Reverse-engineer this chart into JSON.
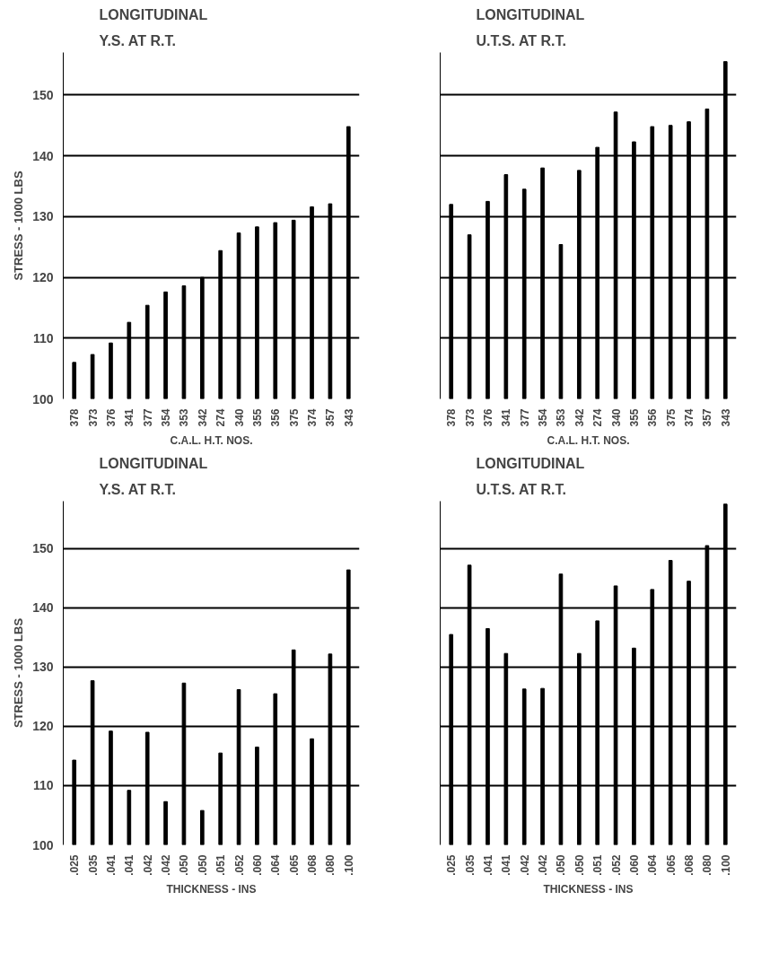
{
  "chart_data": [
    {
      "type": "bar",
      "title": "LONGITUDINAL",
      "subtitle": "Y.S. AT R.T.",
      "xlabel": "C.A.L. H.T. NOS.",
      "ylabel": "STRESS - 1000 LBS",
      "categories": [
        "378",
        "373",
        "376",
        "341",
        "377",
        "354",
        "353",
        "342",
        "274",
        "340",
        "355",
        "356",
        "375",
        "374",
        "357",
        "343"
      ],
      "values": [
        106,
        107.3,
        109.2,
        112.6,
        115.4,
        117.6,
        118.6,
        120,
        124.4,
        127.3,
        128.3,
        129,
        129.4,
        131.6,
        132.1,
        144.8
      ],
      "color": "#000000",
      "ylim": [
        100,
        157
      ],
      "yticks": [
        100,
        110,
        120,
        130,
        140,
        150
      ],
      "grid": "y"
    },
    {
      "type": "bar",
      "title": "LONGITUDINAL",
      "subtitle": "U.T.S. AT R.T.",
      "xlabel": "C.A.L. H.T. NOS.",
      "categories": [
        "378",
        "373",
        "376",
        "341",
        "377",
        "354",
        "353",
        "342",
        "274",
        "340",
        "355",
        "356",
        "375",
        "374",
        "357",
        "343"
      ],
      "values": [
        132,
        127,
        132.5,
        136.9,
        134.5,
        138,
        125.4,
        137.6,
        141.4,
        147.2,
        142.3,
        144.8,
        145,
        145.6,
        147.7,
        155.5
      ],
      "color": "#000000",
      "ylim": [
        100,
        157
      ],
      "yticks": [
        100,
        110,
        120,
        130,
        140,
        150
      ],
      "grid": "y",
      "tick_labels": "x"
    },
    {
      "type": "bar",
      "title": "LONGITUDINAL",
      "subtitle": "Y.S. AT R.T.",
      "xlabel": "THICKNESS - INS",
      "ylabel": "STRESS - 1000 LBS",
      "categories": [
        ".025",
        ".035",
        ".041",
        ".041",
        ".042",
        ".042",
        ".050",
        ".050",
        ".051",
        ".052",
        ".060",
        ".064",
        ".065",
        ".068",
        ".080",
        ".100"
      ],
      "values": [
        114.3,
        127.7,
        119.2,
        109.2,
        119,
        107.3,
        127.3,
        105.8,
        115.5,
        126.2,
        116.5,
        125.5,
        132.9,
        117.9,
        132.2,
        146.4
      ],
      "color": "#000000",
      "ylim": [
        100,
        158
      ],
      "yticks": [
        100,
        110,
        120,
        130,
        140,
        150
      ],
      "grid": "y"
    },
    {
      "type": "bar",
      "title": "LONGITUDINAL",
      "subtitle": "U.T.S. AT R.T.",
      "xlabel": "THICKNESS - INS",
      "categories": [
        ".025",
        ".035",
        ".041",
        ".041",
        ".042",
        ".042",
        ".050",
        ".050",
        ".051",
        ".052",
        ".060",
        ".064",
        ".065",
        ".068",
        ".080",
        ".100"
      ],
      "values": [
        135.5,
        147.2,
        136.5,
        132.3,
        126.3,
        126.4,
        145.7,
        132.3,
        137.8,
        143.7,
        133.2,
        143.1,
        148,
        144.5,
        150.5,
        157.5
      ],
      "color": "#000000",
      "ylim": [
        100,
        158
      ],
      "yticks": [
        100,
        110,
        120,
        130,
        140,
        150
      ],
      "grid": "y",
      "tick_labels": "x"
    }
  ]
}
